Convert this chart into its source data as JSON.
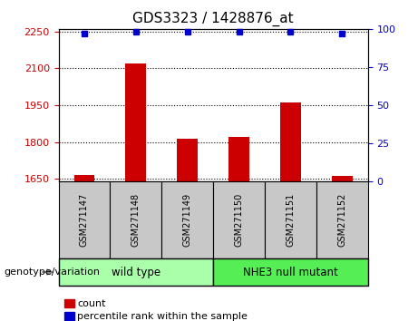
{
  "title": "GDS3323 / 1428876_at",
  "samples": [
    "GSM271147",
    "GSM271148",
    "GSM271149",
    "GSM271150",
    "GSM271151",
    "GSM271152"
  ],
  "counts": [
    1665,
    2120,
    1815,
    1820,
    1960,
    1663
  ],
  "percentile_ranks": [
    97,
    98,
    98,
    98,
    98,
    97
  ],
  "ylim_left": [
    1640,
    2260
  ],
  "yticks_left": [
    1650,
    1800,
    1950,
    2100,
    2250
  ],
  "ylim_right": [
    0,
    100
  ],
  "yticks_right": [
    0,
    25,
    50,
    75,
    100
  ],
  "bar_color": "#cc0000",
  "dot_color": "#0000cc",
  "group1_label": "wild type",
  "group2_label": "NHE3 null mutant",
  "group1_color": "#aaffaa",
  "group2_color": "#55ee55",
  "xlabel_left_color": "#cc0000",
  "xlabel_right_color": "#0000cc",
  "legend_count_label": "count",
  "legend_pct_label": "percentile rank within the sample",
  "genotype_label": "genotype/variation",
  "background_color": "#ffffff",
  "tick_label_bg": "#c8c8c8",
  "bar_width": 0.4,
  "figsize": [
    4.61,
    3.54
  ],
  "dpi": 100
}
